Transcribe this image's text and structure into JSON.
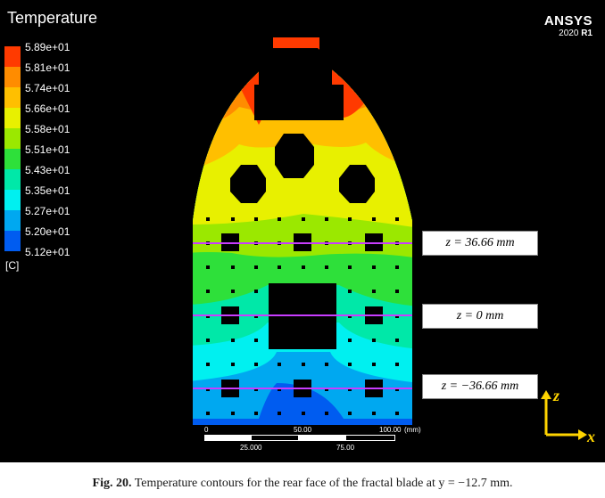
{
  "legend": {
    "title": "Temperature",
    "unit": "[C]",
    "levels": [
      "5.89e+01",
      "5.81e+01",
      "5.74e+01",
      "5.66e+01",
      "5.58e+01",
      "5.51e+01",
      "5.43e+01",
      "5.35e+01",
      "5.27e+01",
      "5.20e+01",
      "5.12e+01"
    ],
    "colors": [
      "#ff3a00",
      "#ff8c00",
      "#ffbf00",
      "#e8f000",
      "#9be800",
      "#2ee03a",
      "#00e8a8",
      "#00f0f0",
      "#00a8f0",
      "#005cf0"
    ]
  },
  "brand": {
    "name": "ANSYS",
    "version": "2020",
    "release": "R1"
  },
  "planes": [
    {
      "label": "z = 36.66 mm"
    },
    {
      "label": "z = 0 mm"
    },
    {
      "label": "z = −36.66 mm"
    }
  ],
  "scale": {
    "top_labels": [
      "0",
      "50.00",
      "100.00",
      "(mm)"
    ],
    "bottom_labels": [
      "25.000",
      "75.00"
    ]
  },
  "axes": {
    "z": "z",
    "x": "x"
  },
  "caption": {
    "fig": "Fig. 20.",
    "text": "Temperature contours for the rear face of the fractal blade at y = −12.7 mm."
  },
  "colors": {
    "plane_line": "#c83cff",
    "axis": "#ffd400"
  }
}
